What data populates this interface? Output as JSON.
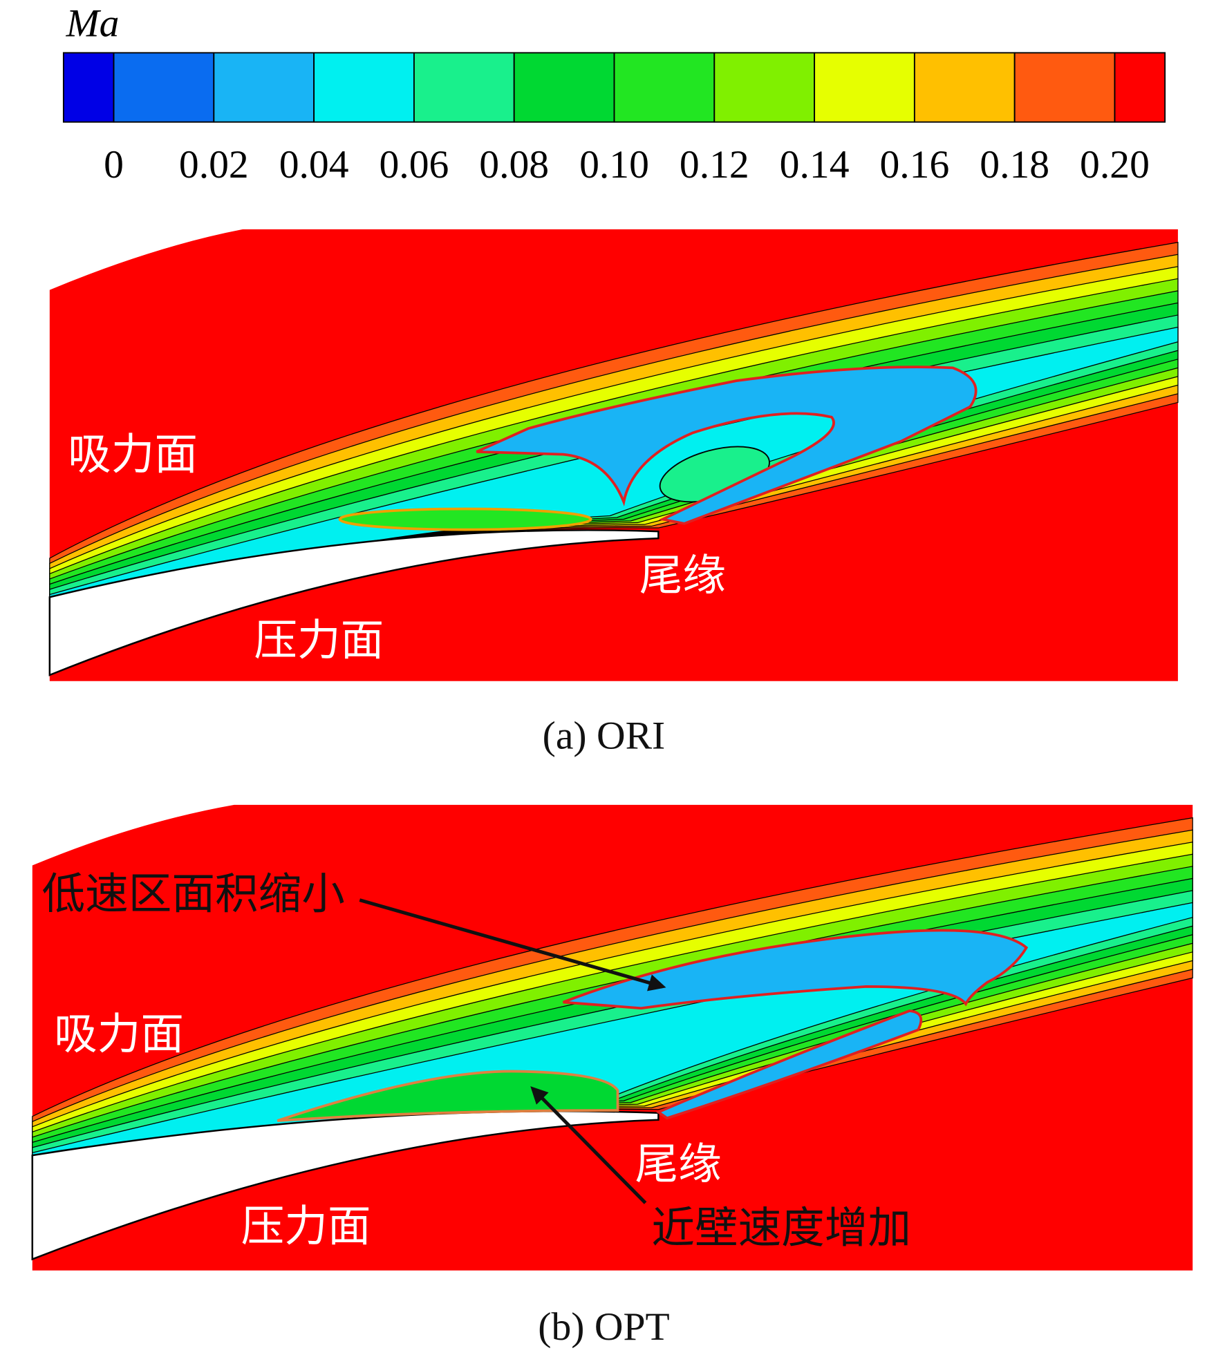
{
  "colorbar": {
    "title": "Ma",
    "ticks": [
      "0",
      "0.02",
      "0.04",
      "0.06",
      "0.08",
      "0.10",
      "0.12",
      "0.14",
      "0.16",
      "0.18",
      "0.20"
    ],
    "colors": [
      "#0000e6",
      "#0a6cf0",
      "#19b4f5",
      "#00f0f0",
      "#19f08c",
      "#00d832",
      "#22e622",
      "#80f000",
      "#e6ff00",
      "#ffc000",
      "#ff5a10",
      "#ff0000"
    ]
  },
  "panels": [
    {
      "caption": "(a) ORI",
      "labels": [
        "吸力面",
        "尾缘",
        "压力面"
      ]
    },
    {
      "caption": "(b) OPT",
      "labels": [
        "吸力面",
        "尾缘",
        "压力面",
        "低速区面积缩小",
        "近壁速度增加"
      ]
    }
  ]
}
